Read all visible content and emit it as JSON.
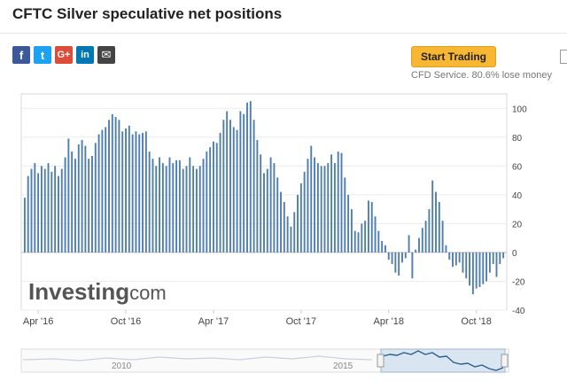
{
  "page": {
    "title": "CFTC Silver speculative net positions"
  },
  "share": {
    "facebook": "f",
    "twitter": "t",
    "googleplus": "G+",
    "linkedin": "in",
    "email": "✉"
  },
  "trade": {
    "button_label": "Start Trading",
    "disclaimer": "CFD Service. 80.6% lose money"
  },
  "watermark": {
    "brand": "Investing",
    "suffix": ".com"
  },
  "navigator": {
    "labels": [
      "2010",
      "2015"
    ]
  },
  "chart_data": {
    "type": "bar",
    "ylim": [
      -40,
      110
    ],
    "y_ticks": [
      100,
      80,
      60,
      40,
      20,
      0,
      -20,
      -40
    ],
    "x_tick_labels": [
      "Apr '16",
      "Oct '16",
      "Apr '17",
      "Oct '17",
      "Apr '18",
      "Oct '18"
    ],
    "x_tick_bar_index": [
      4,
      30,
      56,
      82,
      108,
      134
    ],
    "bar_color": "#4f7eae",
    "grid": true,
    "values": [
      38,
      53,
      58,
      62,
      55,
      60,
      58,
      62,
      56,
      60,
      53,
      58,
      66,
      79,
      70,
      65,
      75,
      78,
      74,
      65,
      67,
      76,
      82,
      85,
      87,
      92,
      96,
      94,
      92,
      84,
      86,
      88,
      82,
      84,
      82,
      83,
      84,
      70,
      65,
      60,
      66,
      62,
      60,
      66,
      62,
      64,
      64,
      58,
      60,
      66,
      60,
      58,
      60,
      65,
      70,
      73,
      77,
      76,
      83,
      92,
      98,
      92,
      87,
      85,
      98,
      96,
      104,
      105,
      92,
      78,
      68,
      55,
      58,
      66,
      62,
      52,
      42,
      35,
      25,
      18,
      28,
      40,
      48,
      56,
      65,
      74,
      66,
      62,
      60,
      60,
      62,
      68,
      62,
      70,
      69,
      52,
      40,
      30,
      15,
      14,
      20,
      22,
      36,
      35,
      25,
      15,
      8,
      5,
      -5,
      -8,
      -14,
      -16,
      -7,
      -4,
      12,
      -18,
      2,
      10,
      17,
      22,
      30,
      50,
      42,
      35,
      22,
      5,
      -5,
      -10,
      -9,
      -7,
      -14,
      -18,
      -23,
      -29,
      -25,
      -24,
      -22,
      -20,
      -14,
      -8,
      -17,
      -8,
      -4
    ]
  }
}
